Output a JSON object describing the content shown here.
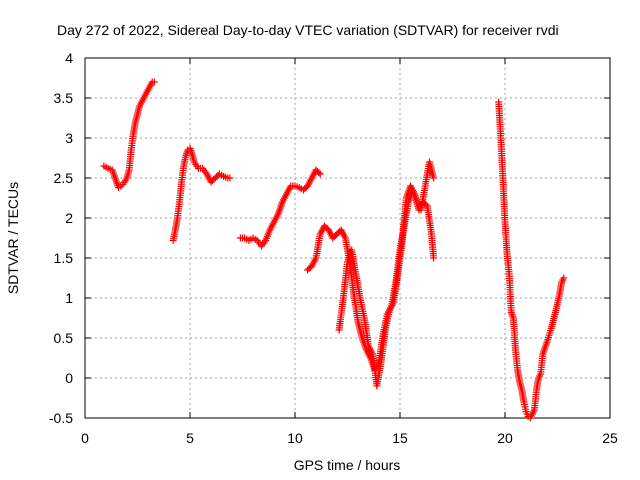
{
  "chart_data": {
    "type": "scatter",
    "title": "Day 272 of 2022, Sidereal Day-to-day VTEC variation (SDTVAR) for receiver rvdi",
    "xlabel": "GPS time / hours",
    "ylabel": "SDTVAR / TECUs",
    "xlim": [
      0,
      25
    ],
    "ylim": [
      -0.5,
      4
    ],
    "xticks": [
      0,
      5,
      10,
      15,
      20,
      25
    ],
    "yticks": [
      -0.5,
      0,
      0.5,
      1,
      1.5,
      2,
      2.5,
      3,
      3.5,
      4
    ],
    "grid": true,
    "marker": "+",
    "color": "#ff0000",
    "segments": [
      {
        "x": [
          0.9,
          1.1,
          1.3,
          1.5,
          1.6,
          1.8,
          2.0,
          2.1,
          2.2,
          2.3,
          2.4,
          2.5,
          2.6,
          2.7,
          2.8,
          2.9,
          3.0,
          3.1,
          3.2,
          3.3
        ],
        "y": [
          2.65,
          2.62,
          2.6,
          2.45,
          2.38,
          2.42,
          2.5,
          2.6,
          2.85,
          3.05,
          3.2,
          3.3,
          3.4,
          3.45,
          3.5,
          3.55,
          3.6,
          3.65,
          3.7,
          3.7
        ]
      },
      {
        "x": [
          4.2,
          4.3,
          4.4,
          4.5,
          4.6,
          4.7,
          4.8,
          4.9,
          5.0,
          5.1,
          5.2,
          5.4,
          5.6,
          5.8,
          6.0,
          6.2,
          6.4,
          6.6,
          6.8,
          6.9
        ],
        "y": [
          1.72,
          1.85,
          2.0,
          2.2,
          2.45,
          2.65,
          2.78,
          2.85,
          2.87,
          2.8,
          2.7,
          2.62,
          2.62,
          2.55,
          2.45,
          2.5,
          2.55,
          2.52,
          2.5,
          2.5
        ]
      },
      {
        "x": [
          7.4,
          7.6,
          7.8,
          8.0,
          8.2,
          8.4,
          8.6,
          8.8,
          9.0,
          9.2,
          9.4,
          9.6,
          9.8,
          10.0,
          10.2,
          10.4,
          10.6,
          10.8,
          11.0,
          11.2
        ],
        "y": [
          1.75,
          1.75,
          1.72,
          1.75,
          1.72,
          1.65,
          1.72,
          1.85,
          1.95,
          2.05,
          2.2,
          2.3,
          2.4,
          2.4,
          2.38,
          2.35,
          2.4,
          2.5,
          2.6,
          2.55
        ]
      },
      {
        "x": [
          10.6,
          10.8,
          11.0,
          11.2,
          11.4,
          11.6,
          11.8,
          12.0,
          12.2,
          12.4,
          12.6,
          12.8,
          13.0,
          13.2,
          13.4,
          13.6,
          13.8,
          14.0,
          14.2,
          14.4,
          14.6,
          14.8,
          15.0,
          15.2,
          15.4,
          15.6,
          15.8,
          16.0,
          16.2,
          16.4,
          16.6
        ],
        "y": [
          1.35,
          1.4,
          1.5,
          1.8,
          1.9,
          1.85,
          1.75,
          1.8,
          1.85,
          1.75,
          1.45,
          1.05,
          0.7,
          0.5,
          0.35,
          0.25,
          0.1,
          0.2,
          0.55,
          0.8,
          0.9,
          1.2,
          1.6,
          1.9,
          2.2,
          2.35,
          2.2,
          2.1,
          2.4,
          2.7,
          2.5
        ]
      },
      {
        "x": [
          12.1,
          12.3,
          12.5,
          12.7,
          12.9,
          13.1,
          13.3,
          13.5,
          13.7,
          13.9,
          14.1,
          14.3,
          14.5,
          14.7,
          14.9,
          15.1,
          15.3,
          15.5,
          15.7,
          15.9,
          16.1,
          16.3,
          16.5,
          16.6
        ],
        "y": [
          0.6,
          1.0,
          1.45,
          1.6,
          1.3,
          1.0,
          0.75,
          0.4,
          0.3,
          -0.1,
          0.2,
          0.6,
          0.85,
          0.95,
          1.3,
          1.7,
          2.25,
          2.4,
          2.3,
          2.1,
          2.2,
          2.15,
          1.8,
          1.5
        ]
      },
      {
        "x": [
          19.7,
          19.8,
          19.9,
          20.0,
          20.1,
          20.2,
          20.3,
          20.4,
          20.5,
          20.6,
          20.7,
          20.8,
          20.9,
          21.0,
          21.1,
          21.2,
          21.3,
          21.4,
          21.5,
          21.6,
          21.7,
          21.8,
          22.0,
          22.2,
          22.4,
          22.6,
          22.7,
          22.8
        ],
        "y": [
          3.45,
          3.0,
          2.5,
          1.95,
          1.55,
          1.3,
          0.82,
          0.75,
          0.35,
          0.1,
          -0.05,
          -0.15,
          -0.3,
          -0.42,
          -0.48,
          -0.5,
          -0.45,
          -0.4,
          -0.15,
          0.0,
          0.05,
          0.3,
          0.45,
          0.62,
          0.82,
          1.05,
          1.2,
          1.25
        ]
      }
    ]
  }
}
